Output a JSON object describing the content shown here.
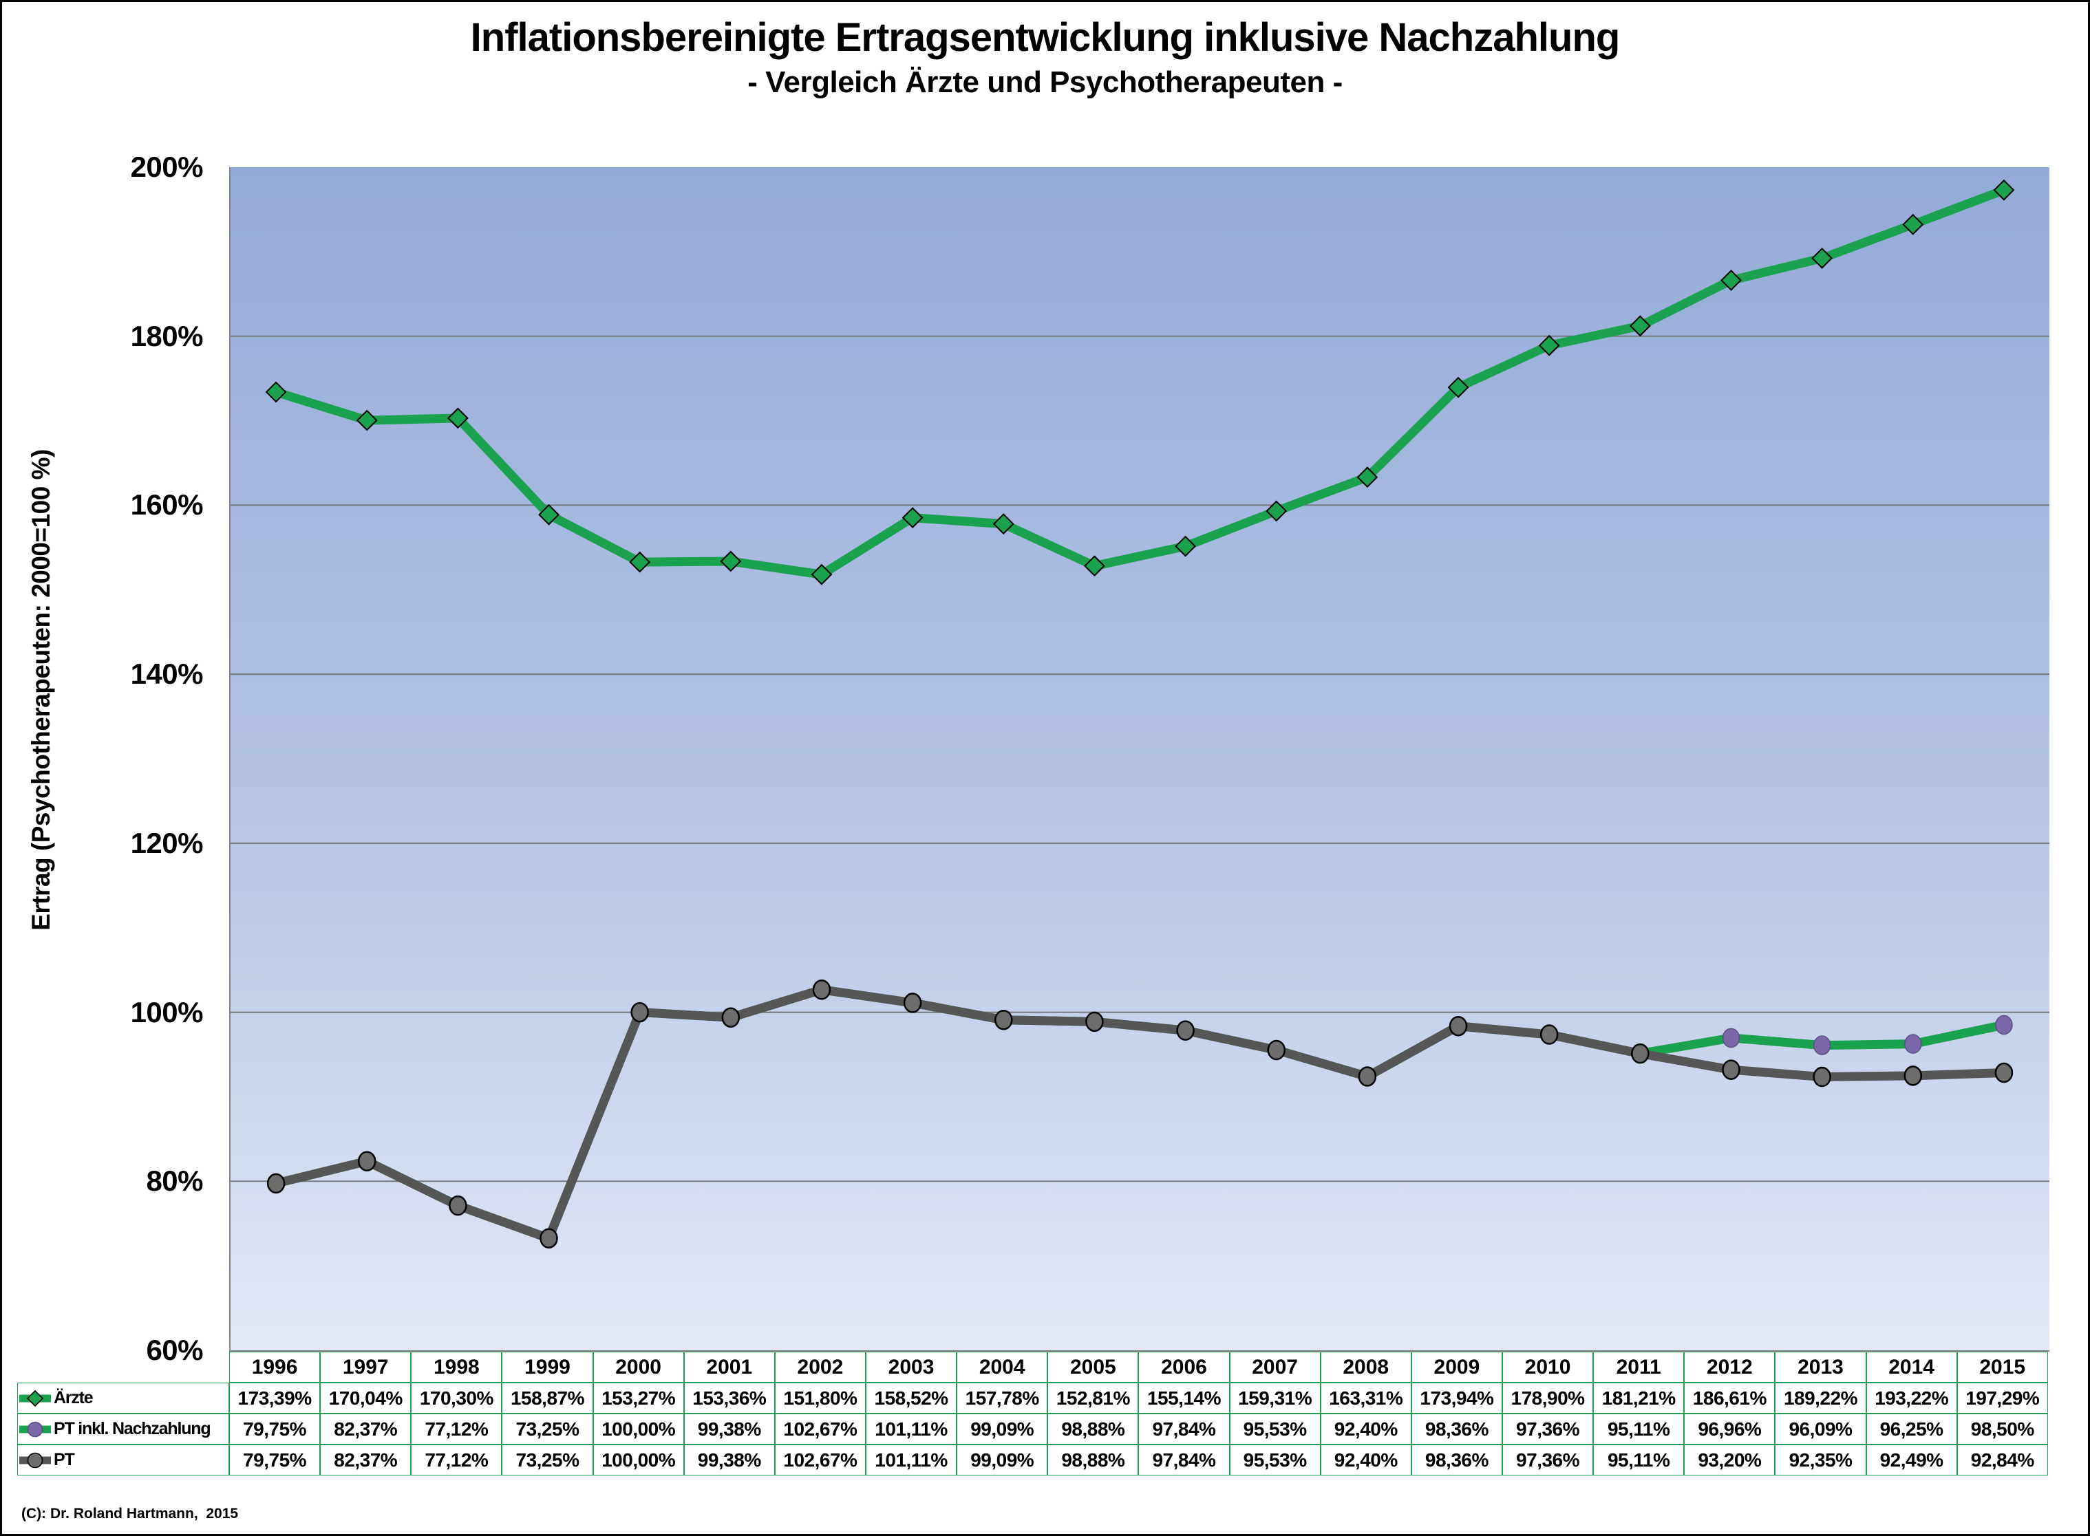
{
  "title": "Inflationsbereinigte Ertragsentwicklung inklusive Nachzahlung",
  "subtitle": "- Vergleich Ärzte und Psychotherapeuten -",
  "y_axis_label": "Ertrag (Psychotherapeuten: 2000=100 %)",
  "copyright": "(C): Dr. Roland Hartmann,  2015",
  "colors": {
    "series_green": "#1aa24e",
    "series_gray": "#565656",
    "marker_gray": "#6d6d6d",
    "marker_purple": "#7b68a8",
    "marker_outline": "#000000",
    "gridline": "#75787b",
    "table_border": "#1f9e55",
    "plot_bg_top": "#93abd8",
    "plot_bg_bottom": "#e3e8f5"
  },
  "chart_data": {
    "type": "line",
    "title": "Inflationsbereinigte Ertragsentwicklung inklusive Nachzahlung",
    "subtitle": "- Vergleich Ärzte und Psychotherapeuten -",
    "xlabel": "",
    "ylabel": "Ertrag (Psychotherapeuten: 2000=100 %)",
    "x": [
      1996,
      1997,
      1998,
      1999,
      2000,
      2001,
      2002,
      2003,
      2004,
      2005,
      2006,
      2007,
      2008,
      2009,
      2010,
      2011,
      2012,
      2013,
      2014,
      2015
    ],
    "ylim": [
      60,
      200
    ],
    "y_tick_labels": [
      "200%",
      "180%",
      "160%",
      "140%",
      "120%",
      "100%",
      "80%",
      "60%"
    ],
    "grid": "horizontal",
    "legend_position": "table-left-column",
    "value_format": "percent, 2 decimals, comma separator",
    "series": [
      {
        "name": "Ärzte",
        "line_color": "#1aa24e",
        "marker": "diamond",
        "marker_color": "#1aa24e",
        "values": [
          173.39,
          170.04,
          170.3,
          158.87,
          153.27,
          153.36,
          151.8,
          158.52,
          157.78,
          152.81,
          155.14,
          159.31,
          163.31,
          173.94,
          178.9,
          181.21,
          186.61,
          189.22,
          193.22,
          197.29
        ]
      },
      {
        "name": "PT inkl. Nachzahlung",
        "line_color": "#1aa24e",
        "marker": "circle",
        "marker_color": "#7b68a8",
        "values": [
          79.75,
          82.37,
          77.12,
          73.25,
          100.0,
          99.38,
          102.67,
          101.11,
          99.09,
          98.88,
          97.84,
          95.53,
          92.4,
          98.36,
          97.36,
          95.11,
          96.96,
          96.09,
          96.25,
          98.5
        ]
      },
      {
        "name": "PT",
        "line_color": "#565656",
        "marker": "circle",
        "marker_color": "#6d6d6d",
        "values": [
          79.75,
          82.37,
          77.12,
          73.25,
          100.0,
          99.38,
          102.67,
          101.11,
          99.09,
          98.88,
          97.84,
          95.53,
          92.4,
          98.36,
          97.36,
          95.11,
          93.2,
          92.35,
          92.49,
          92.84
        ]
      }
    ]
  }
}
